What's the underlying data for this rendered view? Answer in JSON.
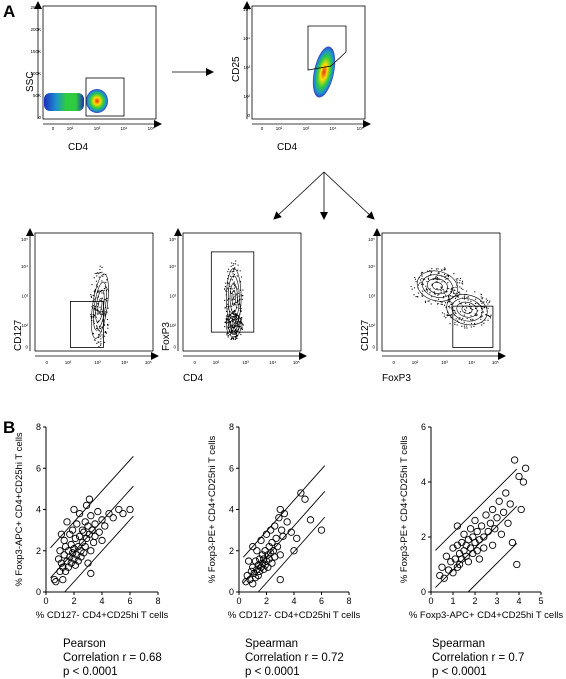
{
  "panel_labels": {
    "a": "A",
    "b": "B"
  },
  "flow": {
    "top_left": {
      "ylabel": "SSC",
      "xlabel": "CD4",
      "yticks": [
        "0",
        "50K",
        "100K",
        "150K",
        "200K",
        "250K"
      ],
      "xticks": [
        "0",
        "10²",
        "10³",
        "10⁴",
        "10⁵"
      ]
    },
    "top_right": {
      "ylabel": "CD25",
      "xlabel": "CD4",
      "yticks": [
        "0",
        "10²",
        "10³",
        "10⁴",
        "10⁵"
      ],
      "xticks": [
        "0",
        "10²",
        "10³",
        "10⁴",
        "10⁵"
      ]
    },
    "bottom": [
      {
        "ylabel": "CD127",
        "xlabel": "CD4",
        "yticks": [
          "0",
          "10²",
          "10³",
          "10⁴",
          "10⁵"
        ],
        "xticks": [
          "0",
          "10²",
          "10³",
          "10⁴",
          "10⁵"
        ]
      },
      {
        "ylabel": "FoxP3",
        "xlabel": "CD4",
        "yticks": [
          "0",
          "10²",
          "10³",
          "10⁴",
          "10⁵"
        ],
        "xticks": [
          "0",
          "10²",
          "10³",
          "10⁴",
          "10⁵"
        ]
      },
      {
        "ylabel": "CD127",
        "xlabel": "FoxP3",
        "yticks": [
          "0",
          "10²",
          "10³",
          "10⁴",
          "10⁵"
        ],
        "xticks": [
          "0",
          "10²",
          "10³",
          "10⁴",
          "10⁵"
        ]
      }
    ]
  },
  "colors": {
    "ink": "#000000",
    "density_low": "#1e2dbe",
    "density_mid": "#2ecc40",
    "density_high": "#ffdc00",
    "density_peak": "#e8281e"
  },
  "chart_data": [
    {
      "type": "scatter",
      "xlabel": "% CD127- CD4+CD25hi T cells",
      "ylabel": "% Foxp3-APC+ CD4+CD25hi T cells",
      "xlim": [
        0,
        8
      ],
      "ylim": [
        0,
        8
      ],
      "xticks": [
        0,
        2,
        4,
        6,
        8
      ],
      "yticks": [
        0,
        2,
        4,
        6,
        8
      ],
      "fit": {
        "slope": 0.75,
        "intercept": 0.45,
        "band": 1.45
      },
      "stats": {
        "method": "Pearson",
        "correlation": "Correlation r = 0.68",
        "p": "p < 0.0001"
      },
      "points": [
        [
          0.6,
          0.6
        ],
        [
          0.7,
          0.5
        ],
        [
          0.9,
          1.6
        ],
        [
          1.0,
          1.0
        ],
        [
          1.0,
          2.0
        ],
        [
          1.1,
          1.4
        ],
        [
          1.2,
          1.2
        ],
        [
          1.2,
          0.6
        ],
        [
          1.3,
          1.8
        ],
        [
          1.3,
          2.5
        ],
        [
          1.4,
          1.0
        ],
        [
          1.4,
          2.2
        ],
        [
          1.5,
          1.5
        ],
        [
          1.5,
          3.4
        ],
        [
          1.6,
          2.0
        ],
        [
          1.6,
          1.2
        ],
        [
          1.7,
          1.7
        ],
        [
          1.7,
          2.8
        ],
        [
          1.8,
          1.4
        ],
        [
          1.8,
          2.3
        ],
        [
          1.9,
          1.9
        ],
        [
          1.9,
          3.0
        ],
        [
          2.0,
          1.6
        ],
        [
          2.0,
          2.1
        ],
        [
          2.0,
          4.0
        ],
        [
          2.1,
          2.6
        ],
        [
          2.1,
          1.3
        ],
        [
          2.2,
          1.8
        ],
        [
          2.2,
          3.3
        ],
        [
          2.3,
          2.2
        ],
        [
          2.3,
          1.5
        ],
        [
          2.4,
          2.7
        ],
        [
          2.4,
          3.8
        ],
        [
          2.5,
          2.0
        ],
        [
          2.5,
          1.7
        ],
        [
          2.6,
          2.4
        ],
        [
          2.6,
          3.0
        ],
        [
          2.7,
          2.9
        ],
        [
          2.7,
          1.9
        ],
        [
          2.8,
          3.4
        ],
        [
          2.8,
          2.2
        ],
        [
          2.9,
          2.6
        ],
        [
          3.0,
          3.2
        ],
        [
          3.0,
          1.4
        ],
        [
          3.1,
          2.8
        ],
        [
          3.1,
          4.5
        ],
        [
          3.2,
          2.0
        ],
        [
          3.2,
          3.7
        ],
        [
          3.3,
          3.0
        ],
        [
          3.4,
          2.4
        ],
        [
          3.5,
          3.3
        ],
        [
          3.5,
          2.7
        ],
        [
          3.7,
          3.9
        ],
        [
          3.8,
          2.9
        ],
        [
          4.0,
          3.5
        ],
        [
          4.0,
          2.5
        ],
        [
          4.2,
          3.2
        ],
        [
          4.5,
          3.8
        ],
        [
          4.8,
          3.6
        ],
        [
          5.2,
          4.0
        ],
        [
          5.5,
          3.8
        ],
        [
          6.0,
          4.0
        ],
        [
          3.2,
          0.9
        ],
        [
          2.9,
          4.2
        ],
        [
          1.1,
          2.8
        ]
      ]
    },
    {
      "type": "scatter",
      "xlabel": "% CD127- CD4+CD25hi T cells",
      "ylabel": "% Foxp3-PE+ CD4+CD25hi T cells",
      "xlim": [
        0,
        8
      ],
      "ylim": [
        0,
        8
      ],
      "xticks": [
        0,
        2,
        4,
        6,
        8
      ],
      "yticks": [
        0,
        2,
        4,
        6,
        8
      ],
      "fit": {
        "slope": 0.75,
        "intercept": 0.2,
        "band": 1.25
      },
      "stats": {
        "method": "Spearman",
        "correlation": "Correlation r = 0.72",
        "p": "p < 0.0001"
      },
      "points": [
        [
          0.5,
          0.5
        ],
        [
          0.6,
          0.8
        ],
        [
          0.7,
          1.5
        ],
        [
          0.8,
          0.6
        ],
        [
          0.9,
          1.0
        ],
        [
          1.0,
          1.2
        ],
        [
          1.0,
          0.4
        ],
        [
          1.1,
          0.9
        ],
        [
          1.2,
          1.5
        ],
        [
          1.2,
          0.7
        ],
        [
          1.3,
          1.1
        ],
        [
          1.3,
          2.0
        ],
        [
          1.4,
          1.3
        ],
        [
          1.4,
          0.8
        ],
        [
          1.5,
          1.6
        ],
        [
          1.5,
          1.0
        ],
        [
          1.6,
          1.2
        ],
        [
          1.6,
          2.5
        ],
        [
          1.7,
          1.4
        ],
        [
          1.7,
          1.8
        ],
        [
          1.8,
          1.1
        ],
        [
          1.8,
          1.6
        ],
        [
          1.9,
          2.0
        ],
        [
          1.9,
          1.3
        ],
        [
          2.0,
          1.5
        ],
        [
          2.0,
          2.8
        ],
        [
          2.1,
          1.8
        ],
        [
          2.1,
          1.2
        ],
        [
          2.2,
          2.2
        ],
        [
          2.2,
          1.6
        ],
        [
          2.3,
          1.9
        ],
        [
          2.4,
          2.4
        ],
        [
          2.4,
          1.4
        ],
        [
          2.5,
          2.0
        ],
        [
          2.6,
          3.2
        ],
        [
          2.6,
          1.7
        ],
        [
          2.7,
          2.6
        ],
        [
          2.8,
          2.2
        ],
        [
          2.9,
          3.6
        ],
        [
          3.0,
          1.8
        ],
        [
          3.0,
          4.0
        ],
        [
          3.1,
          3.0
        ],
        [
          3.2,
          2.7
        ],
        [
          3.3,
          3.8
        ],
        [
          3.5,
          3.4
        ],
        [
          3.8,
          2.9
        ],
        [
          4.0,
          2.0
        ],
        [
          4.2,
          2.6
        ],
        [
          4.5,
          4.8
        ],
        [
          4.8,
          4.5
        ],
        [
          5.2,
          3.5
        ],
        [
          6.0,
          3.0
        ],
        [
          3.0,
          0.6
        ],
        [
          1.0,
          2.2
        ],
        [
          2.3,
          3.0
        ]
      ]
    },
    {
      "type": "scatter",
      "xlabel": "% Foxp3-APC+ CD4+CD25hi T cells",
      "ylabel": "% Foxp3-PE+ CD4+CD25hi T cells",
      "xlim": [
        0,
        5
      ],
      "ylim": [
        0,
        6
      ],
      "xticks": [
        0,
        1,
        2,
        3,
        4,
        5
      ],
      "yticks": [
        0,
        2,
        4,
        6
      ],
      "fit": {
        "slope": 0.8,
        "intercept": 0.0,
        "band": 1.35
      },
      "stats": {
        "method": "Spearman",
        "correlation": "Correlation r = 0.7",
        "p": "p < 0.0001"
      },
      "points": [
        [
          0.4,
          0.6
        ],
        [
          0.5,
          0.9
        ],
        [
          0.6,
          0.5
        ],
        [
          0.7,
          1.3
        ],
        [
          0.8,
          0.8
        ],
        [
          0.9,
          1.1
        ],
        [
          1.0,
          0.7
        ],
        [
          1.0,
          1.6
        ],
        [
          1.1,
          1.2
        ],
        [
          1.2,
          0.9
        ],
        [
          1.2,
          1.7
        ],
        [
          1.3,
          1.4
        ],
        [
          1.3,
          1.0
        ],
        [
          1.4,
          1.8
        ],
        [
          1.4,
          1.2
        ],
        [
          1.5,
          1.5
        ],
        [
          1.5,
          2.1
        ],
        [
          1.6,
          1.3
        ],
        [
          1.6,
          1.7
        ],
        [
          1.7,
          1.9
        ],
        [
          1.7,
          1.1
        ],
        [
          1.8,
          2.3
        ],
        [
          1.8,
          1.6
        ],
        [
          1.9,
          1.4
        ],
        [
          1.9,
          2.0
        ],
        [
          2.0,
          1.8
        ],
        [
          2.0,
          2.6
        ],
        [
          2.1,
          1.5
        ],
        [
          2.1,
          2.2
        ],
        [
          2.2,
          1.9
        ],
        [
          2.2,
          1.2
        ],
        [
          2.3,
          2.4
        ],
        [
          2.4,
          2.0
        ],
        [
          2.4,
          1.6
        ],
        [
          2.5,
          2.8
        ],
        [
          2.6,
          2.2
        ],
        [
          2.7,
          2.5
        ],
        [
          2.8,
          1.7
        ],
        [
          2.8,
          3.0
        ],
        [
          2.9,
          2.3
        ],
        [
          3.0,
          2.7
        ],
        [
          3.1,
          3.3
        ],
        [
          3.2,
          2.1
        ],
        [
          3.3,
          2.9
        ],
        [
          3.4,
          3.6
        ],
        [
          3.5,
          2.5
        ],
        [
          3.6,
          3.2
        ],
        [
          3.7,
          1.8
        ],
        [
          3.8,
          4.8
        ],
        [
          4.0,
          4.2
        ],
        [
          4.1,
          3.0
        ],
        [
          4.2,
          4.0
        ],
        [
          4.3,
          4.5
        ],
        [
          3.9,
          1.0
        ],
        [
          1.2,
          2.4
        ]
      ]
    }
  ]
}
